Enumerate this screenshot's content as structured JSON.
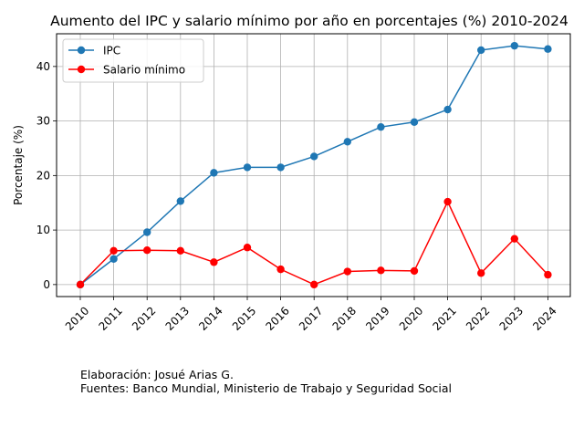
{
  "chart_data": {
    "type": "line",
    "title": "Aumento del IPC y salario mínimo por año en porcentajes (%) 2010-2024",
    "xlabel": "",
    "ylabel": "Porcentaje (%)",
    "categories": [
      "2010",
      "2011",
      "2012",
      "2013",
      "2014",
      "2015",
      "2016",
      "2017",
      "2018",
      "2019",
      "2020",
      "2021",
      "2022",
      "2023",
      "2024"
    ],
    "ylim": [
      -2.2,
      46
    ],
    "yticks": [
      0,
      10,
      20,
      30,
      40
    ],
    "grid": true,
    "legend": "top-left",
    "series": [
      {
        "name": "IPC",
        "color": "#1f77b4",
        "values": [
          0,
          4.7,
          9.6,
          15.3,
          20.5,
          21.5,
          21.5,
          23.5,
          26.2,
          28.9,
          29.8,
          32.1,
          43.0,
          43.8,
          43.2
        ]
      },
      {
        "name": "Salario mínimo",
        "color": "#ff0000",
        "values": [
          0,
          6.2,
          6.3,
          6.2,
          4.1,
          6.8,
          2.8,
          0,
          2.4,
          2.6,
          2.5,
          15.2,
          2.1,
          8.4,
          1.8
        ]
      }
    ]
  },
  "notes": {
    "line1": "Elaboración: Josué Arias G.",
    "line2": "Fuentes: Banco Mundial, Ministerio de Trabajo y Seguridad Social"
  }
}
